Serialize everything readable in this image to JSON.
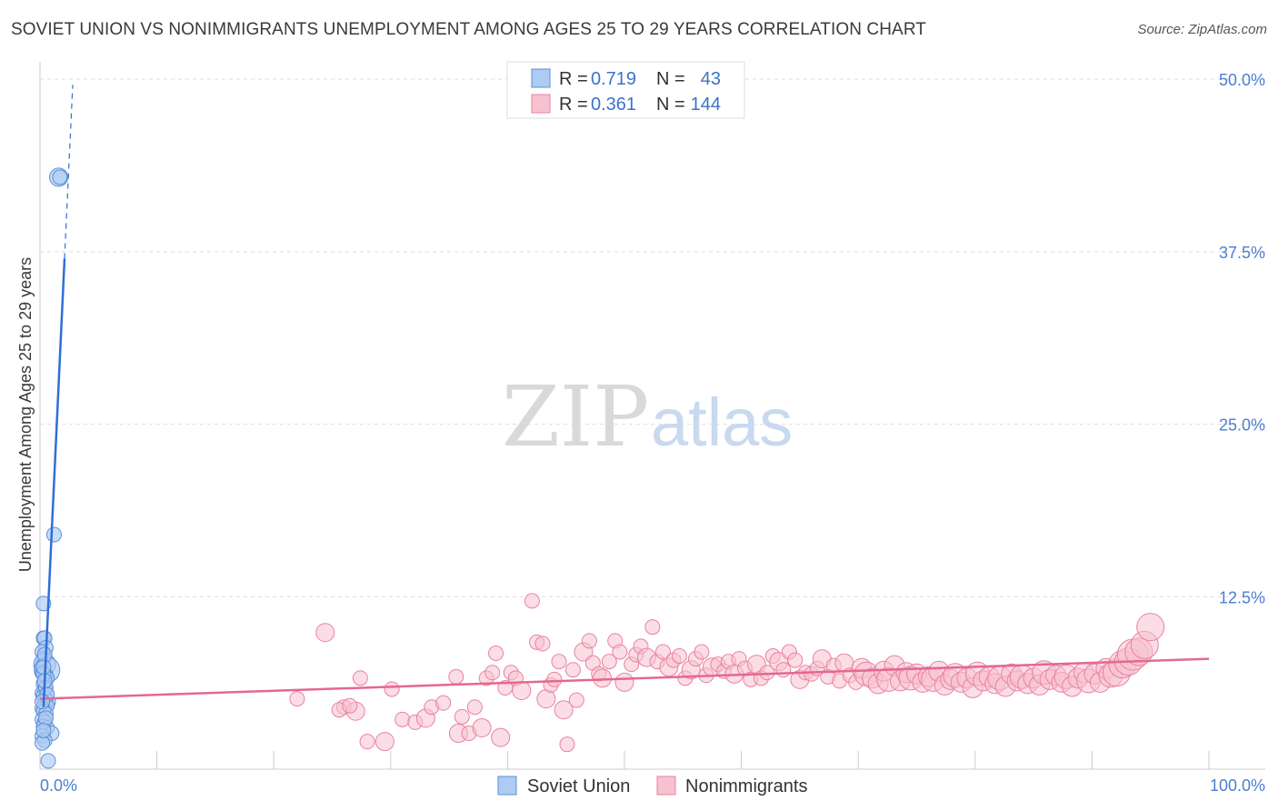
{
  "header": {
    "title": "SOVIET UNION VS NONIMMIGRANTS UNEMPLOYMENT AMONG AGES 25 TO 29 YEARS CORRELATION CHART",
    "source": "Source: ZipAtlas.com"
  },
  "watermark": {
    "zip": "ZIP",
    "atlas": "atlas"
  },
  "colors": {
    "soviet_fill": "#aecbf3",
    "soviet_stroke": "#5b8fd8",
    "soviet_line": "#2f6fd6",
    "nonimm_fill": "#f7c1d0",
    "nonimm_stroke": "#e882a3",
    "nonimm_line": "#e4688f",
    "axis_label": "#4a7fd0",
    "grid": "#dddddd"
  },
  "legend_box": {
    "rows": [
      {
        "r_label": "R =",
        "r_value": "0.719",
        "n_label": "N =",
        "n_value": "43"
      },
      {
        "r_label": "R =",
        "r_value": "0.361",
        "n_label": "N =",
        "n_value": "144"
      }
    ]
  },
  "chart_data": {
    "type": "scatter",
    "title": "SOVIET UNION VS NONIMMIGRANTS UNEMPLOYMENT AMONG AGES 25 TO 29 YEARS CORRELATION CHART",
    "xlabel": "",
    "ylabel": "Unemployment Among Ages 25 to 29 years",
    "xlim": [
      0,
      100
    ],
    "ylim": [
      0,
      51
    ],
    "x_tick_labels": [
      "0.0%",
      "100.0%"
    ],
    "y_ticks": [
      12.5,
      25.0,
      37.5,
      50.0
    ],
    "y_tick_labels": [
      "12.5%",
      "25.0%",
      "37.5%",
      "50.0%"
    ],
    "grid": true,
    "legend_position": "bottom-center",
    "series": [
      {
        "name": "Soviet Union",
        "r": 0.719,
        "n": 43,
        "trend": {
          "x": [
            0.3,
            2.1
          ],
          "y": [
            4.5,
            37.0
          ]
        },
        "trend_extension": {
          "x": [
            2.1,
            2.8
          ],
          "y": [
            37.0,
            49.6
          ]
        },
        "points": [
          [
            1.6,
            42.9
          ],
          [
            1.7,
            42.9
          ],
          [
            1.2,
            17.0
          ],
          [
            0.3,
            12.0
          ],
          [
            0.3,
            9.5
          ],
          [
            0.4,
            9.5
          ],
          [
            0.5,
            8.8
          ],
          [
            0.2,
            8.5
          ],
          [
            0.3,
            8.0
          ],
          [
            0.4,
            7.6
          ],
          [
            0.6,
            7.2
          ],
          [
            0.2,
            7.0
          ],
          [
            0.5,
            6.8
          ],
          [
            0.6,
            6.6
          ],
          [
            0.3,
            6.2
          ],
          [
            0.4,
            5.8
          ],
          [
            0.2,
            5.5
          ],
          [
            0.3,
            5.3
          ],
          [
            0.5,
            5.1
          ],
          [
            0.7,
            4.9
          ],
          [
            0.4,
            4.7
          ],
          [
            0.6,
            4.6
          ],
          [
            0.2,
            4.4
          ],
          [
            0.3,
            4.2
          ],
          [
            0.5,
            4.0
          ],
          [
            0.2,
            3.6
          ],
          [
            0.4,
            3.4
          ],
          [
            0.3,
            3.1
          ],
          [
            0.6,
            3.0
          ],
          [
            1.0,
            2.6
          ],
          [
            0.2,
            2.4
          ],
          [
            0.4,
            2.1
          ],
          [
            0.2,
            1.9
          ],
          [
            0.7,
            0.6
          ],
          [
            0.3,
            6.9
          ],
          [
            0.5,
            5.9
          ],
          [
            0.4,
            8.3
          ],
          [
            0.3,
            7.4
          ],
          [
            0.6,
            5.4
          ],
          [
            0.2,
            4.9
          ],
          [
            0.5,
            3.7
          ],
          [
            0.3,
            2.8
          ],
          [
            0.4,
            6.4
          ]
        ],
        "sizes": [
          10,
          8,
          8,
          8,
          8,
          8,
          8,
          8,
          8,
          12,
          14,
          8,
          8,
          8,
          8,
          8,
          8,
          8,
          8,
          8,
          8,
          8,
          8,
          8,
          8,
          8,
          8,
          8,
          8,
          8,
          8,
          8,
          8,
          8,
          8,
          8,
          8,
          8,
          8,
          8,
          8,
          8,
          8
        ]
      },
      {
        "name": "Nonimmigrants",
        "r": 0.361,
        "n": 144,
        "trend": {
          "x": [
            0,
            100
          ],
          "y": [
            5.1,
            8.0
          ]
        },
        "points": [
          [
            24.4,
            9.9
          ],
          [
            22.0,
            5.1
          ],
          [
            26.0,
            4.5
          ],
          [
            25.6,
            4.3
          ],
          [
            27.0,
            4.2
          ],
          [
            26.5,
            4.6
          ],
          [
            27.4,
            6.6
          ],
          [
            28.0,
            2.0
          ],
          [
            29.5,
            2.0
          ],
          [
            30.1,
            5.8
          ],
          [
            31.0,
            3.6
          ],
          [
            32.1,
            3.4
          ],
          [
            33.0,
            3.7
          ],
          [
            33.5,
            4.5
          ],
          [
            34.5,
            4.8
          ],
          [
            35.6,
            6.7
          ],
          [
            35.8,
            2.6
          ],
          [
            36.1,
            3.8
          ],
          [
            36.7,
            2.6
          ],
          [
            37.2,
            4.5
          ],
          [
            37.8,
            3.0
          ],
          [
            38.2,
            6.6
          ],
          [
            38.7,
            7.0
          ],
          [
            39.0,
            8.4
          ],
          [
            39.4,
            2.3
          ],
          [
            39.8,
            5.9
          ],
          [
            40.3,
            7.0
          ],
          [
            40.7,
            6.6
          ],
          [
            41.2,
            5.7
          ],
          [
            42.1,
            12.2
          ],
          [
            42.5,
            9.2
          ],
          [
            43.0,
            9.1
          ],
          [
            43.3,
            5.1
          ],
          [
            43.7,
            6.1
          ],
          [
            44.0,
            6.5
          ],
          [
            44.4,
            7.8
          ],
          [
            44.8,
            4.3
          ],
          [
            45.1,
            1.8
          ],
          [
            45.6,
            7.2
          ],
          [
            45.9,
            5.0
          ],
          [
            46.5,
            8.5
          ],
          [
            47.0,
            9.3
          ],
          [
            47.3,
            7.7
          ],
          [
            47.8,
            6.9
          ],
          [
            48.1,
            6.6
          ],
          [
            48.7,
            7.8
          ],
          [
            49.2,
            9.3
          ],
          [
            49.6,
            8.5
          ],
          [
            50.0,
            6.3
          ],
          [
            50.6,
            7.6
          ],
          [
            51.0,
            8.3
          ],
          [
            51.4,
            8.9
          ],
          [
            51.9,
            8.1
          ],
          [
            52.4,
            10.3
          ],
          [
            52.8,
            7.8
          ],
          [
            53.3,
            8.5
          ],
          [
            53.8,
            7.4
          ],
          [
            54.2,
            7.9
          ],
          [
            54.7,
            8.2
          ],
          [
            55.2,
            6.6
          ],
          [
            55.7,
            7.2
          ],
          [
            56.1,
            8.0
          ],
          [
            56.6,
            8.5
          ],
          [
            57.0,
            6.8
          ],
          [
            57.5,
            7.4
          ],
          [
            58.0,
            7.6
          ],
          [
            58.5,
            7.1
          ],
          [
            58.9,
            7.8
          ],
          [
            59.4,
            6.9
          ],
          [
            59.8,
            8.0
          ],
          [
            60.3,
            7.3
          ],
          [
            60.8,
            6.5
          ],
          [
            61.3,
            7.6
          ],
          [
            61.7,
            6.6
          ],
          [
            62.2,
            7.0
          ],
          [
            62.7,
            8.2
          ],
          [
            63.2,
            7.8
          ],
          [
            63.6,
            7.2
          ],
          [
            64.1,
            8.5
          ],
          [
            64.6,
            7.9
          ],
          [
            65.0,
            6.5
          ],
          [
            65.5,
            7.0
          ],
          [
            66.0,
            6.9
          ],
          [
            66.5,
            7.3
          ],
          [
            66.9,
            8.0
          ],
          [
            67.4,
            6.7
          ],
          [
            67.9,
            7.5
          ],
          [
            68.4,
            6.4
          ],
          [
            68.8,
            7.7
          ],
          [
            69.3,
            6.8
          ],
          [
            69.8,
            6.3
          ],
          [
            70.3,
            7.3
          ],
          [
            70.7,
            6.9
          ],
          [
            71.2,
            6.6
          ],
          [
            71.7,
            6.2
          ],
          [
            72.2,
            7.1
          ],
          [
            72.6,
            6.5
          ],
          [
            73.1,
            7.5
          ],
          [
            73.6,
            6.4
          ],
          [
            74.1,
            7.0
          ],
          [
            74.5,
            6.6
          ],
          [
            75.0,
            6.9
          ],
          [
            75.5,
            6.3
          ],
          [
            76.0,
            6.7
          ],
          [
            76.4,
            6.5
          ],
          [
            76.9,
            7.1
          ],
          [
            77.4,
            6.1
          ],
          [
            77.9,
            6.5
          ],
          [
            78.3,
            6.8
          ],
          [
            78.8,
            6.3
          ],
          [
            79.3,
            6.6
          ],
          [
            79.8,
            5.9
          ],
          [
            80.2,
            6.9
          ],
          [
            80.7,
            6.4
          ],
          [
            81.2,
            6.7
          ],
          [
            81.7,
            6.2
          ],
          [
            82.1,
            6.6
          ],
          [
            82.6,
            6.0
          ],
          [
            83.1,
            6.9
          ],
          [
            83.6,
            6.4
          ],
          [
            84.0,
            6.7
          ],
          [
            84.5,
            6.2
          ],
          [
            85.0,
            6.6
          ],
          [
            85.5,
            6.1
          ],
          [
            85.9,
            7.0
          ],
          [
            86.4,
            6.5
          ],
          [
            86.9,
            6.8
          ],
          [
            87.4,
            6.3
          ],
          [
            87.8,
            6.7
          ],
          [
            88.3,
            6.0
          ],
          [
            88.8,
            6.6
          ],
          [
            89.3,
            7.0
          ],
          [
            89.7,
            6.4
          ],
          [
            90.2,
            6.9
          ],
          [
            90.7,
            6.3
          ],
          [
            91.2,
            7.3
          ],
          [
            91.6,
            6.8
          ],
          [
            92.1,
            7.0
          ],
          [
            92.6,
            7.6
          ],
          [
            93.1,
            7.8
          ],
          [
            93.5,
            8.3
          ],
          [
            94.0,
            8.5
          ],
          [
            94.5,
            9.0
          ],
          [
            95.0,
            10.3
          ]
        ]
      }
    ]
  },
  "legend": {
    "items": [
      {
        "label": "Soviet Union"
      },
      {
        "label": "Nonimmigrants"
      }
    ]
  }
}
